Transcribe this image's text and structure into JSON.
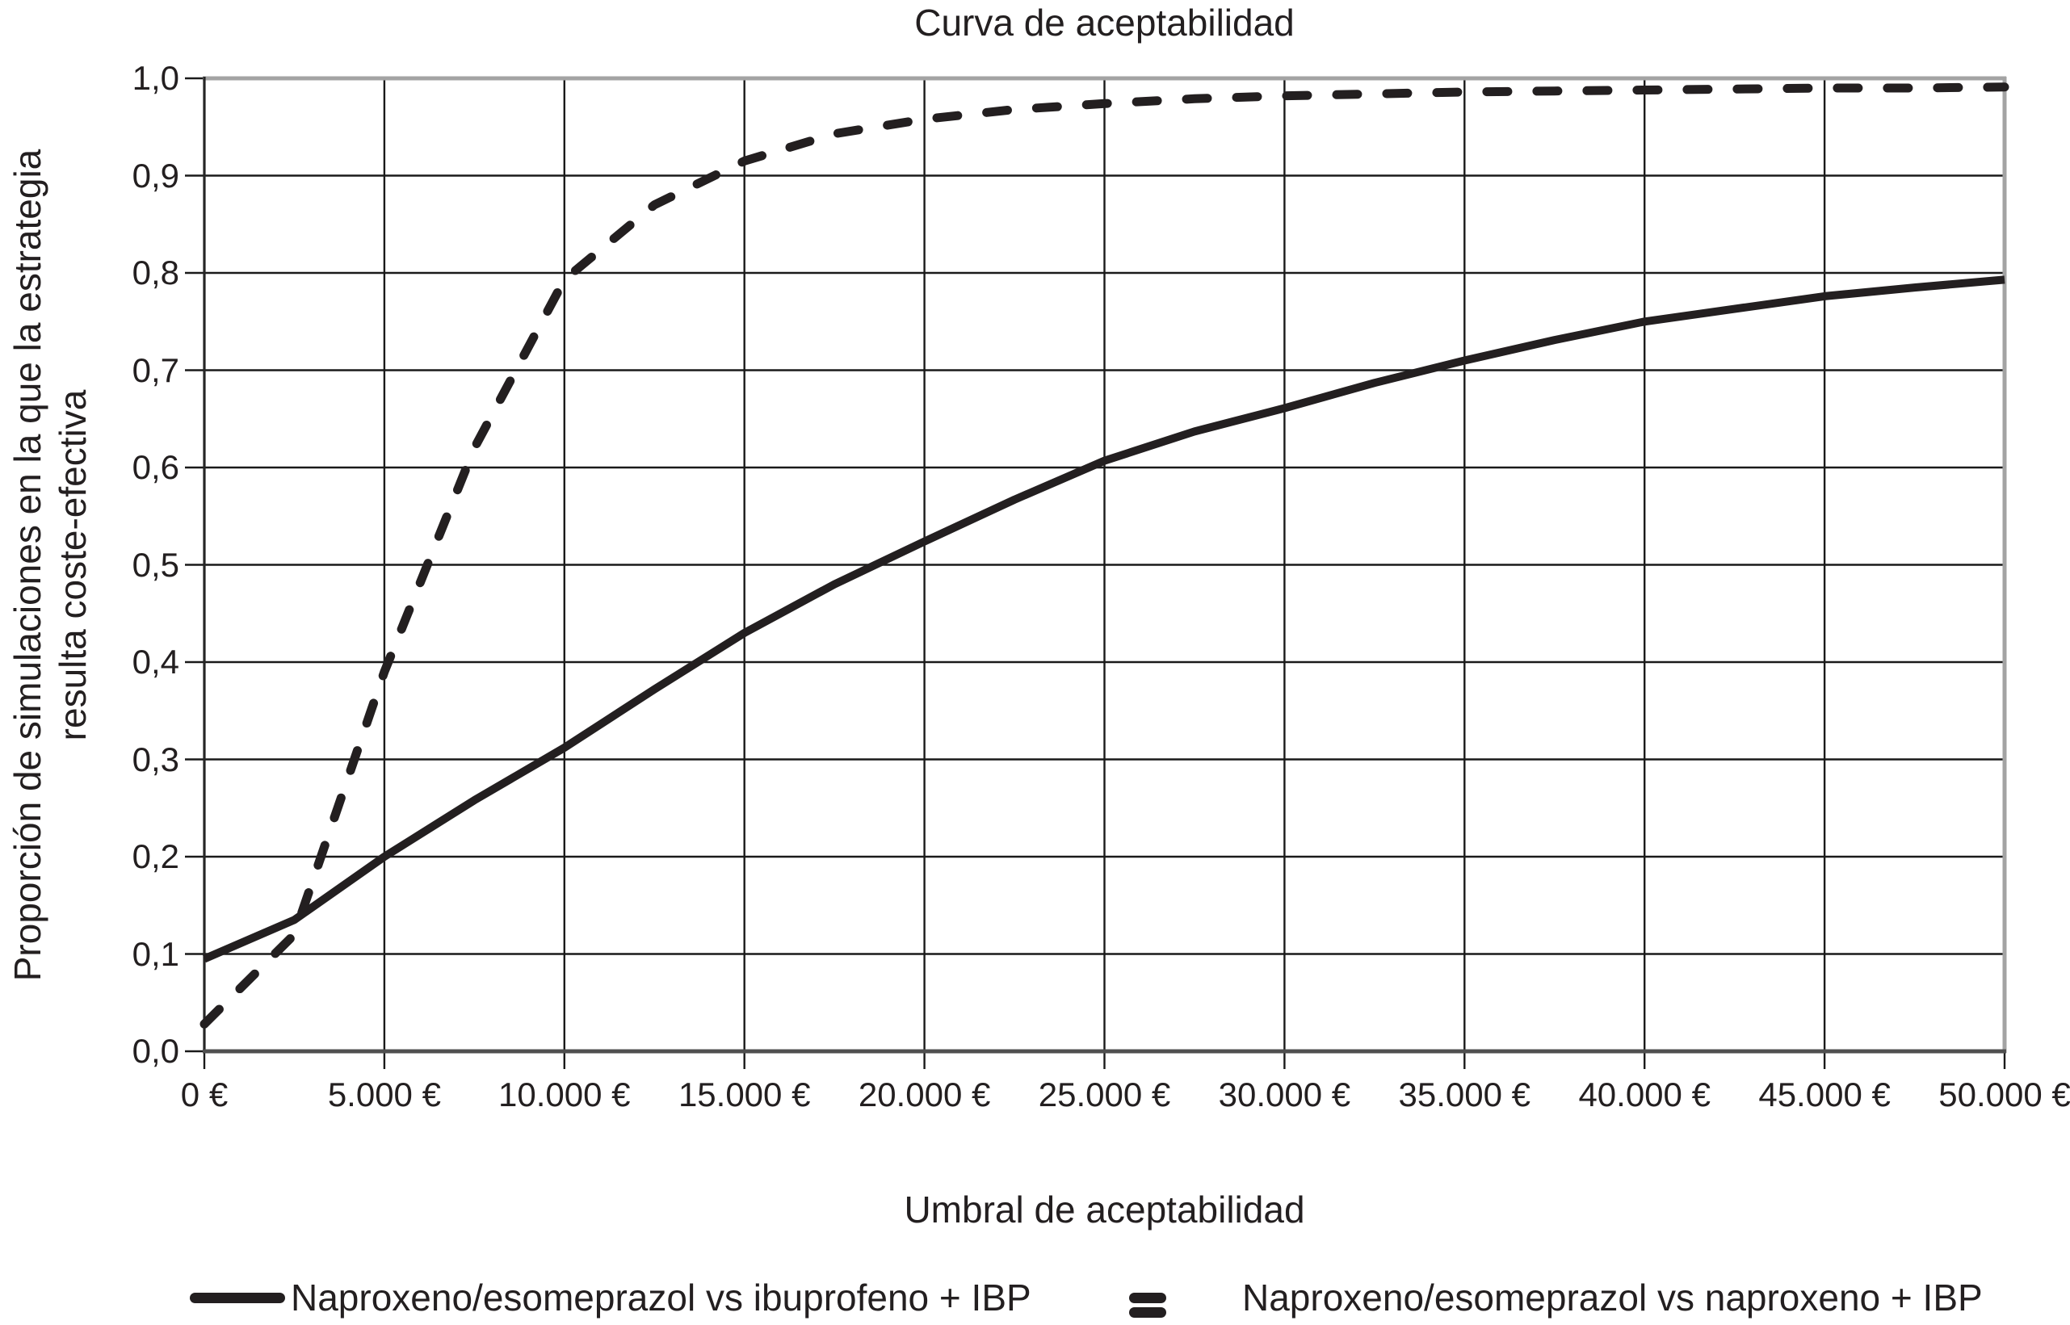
{
  "title": "Curva de aceptabilidad",
  "colors": {
    "line": "#231f20",
    "grid": "#1a1a1a",
    "frame_gray": "#a3a3a3",
    "axis_dark": "#4f4f4f",
    "background": "#ffffff"
  },
  "chart_data": {
    "type": "line",
    "title": "Curva de aceptabilidad",
    "xlabel": "Umbral de aceptabilidad",
    "ylabel_line1": "Proporción de simulaciones en la que la estrategia",
    "ylabel_line2": "resulta coste-efectiva",
    "xlim": [
      0,
      50000
    ],
    "ylim": [
      0.0,
      1.0
    ],
    "grid": true,
    "legend_position": "bottom",
    "x_ticks": [
      0,
      5000,
      10000,
      15000,
      20000,
      25000,
      30000,
      35000,
      40000,
      45000,
      50000
    ],
    "x_tick_labels": [
      "0 €",
      "5.000 €",
      "10.000 €",
      "15.000 €",
      "20.000 €",
      "25.000 €",
      "30.000 €",
      "35.000 €",
      "40.000 €",
      "45.000 €",
      "50.000 €"
    ],
    "y_ticks": [
      0.0,
      0.1,
      0.2,
      0.3,
      0.4,
      0.5,
      0.6,
      0.7,
      0.8,
      0.9,
      1.0
    ],
    "y_tick_labels": [
      "0,0",
      "0,1",
      "0,2",
      "0,3",
      "0,4",
      "0,5",
      "0,6",
      "0,7",
      "0,8",
      "0,9",
      "1,0"
    ],
    "x": [
      0,
      2500,
      5000,
      7500,
      10000,
      12500,
      15000,
      17500,
      20000,
      22500,
      25000,
      27500,
      30000,
      32500,
      35000,
      37500,
      40000,
      42500,
      45000,
      47500,
      50000
    ],
    "series": [
      {
        "name": "Naproxeno/esomeprazol vs ibuprofeno + IBP",
        "style": "solid",
        "values": [
          0.095,
          0.135,
          0.2,
          0.258,
          0.312,
          0.372,
          0.43,
          0.48,
          0.524,
          0.567,
          0.607,
          0.637,
          0.661,
          0.687,
          0.71,
          0.731,
          0.75,
          0.763,
          0.776,
          0.785,
          0.793
        ]
      },
      {
        "name": "Naproxeno/esomeprazol vs naproxeno + IBP",
        "style": "dashed",
        "values": [
          0.028,
          0.12,
          0.39,
          0.62,
          0.793,
          0.87,
          0.915,
          0.943,
          0.958,
          0.968,
          0.974,
          0.979,
          0.982,
          0.984,
          0.986,
          0.987,
          0.988,
          0.989,
          0.99,
          0.99,
          0.991
        ]
      }
    ]
  }
}
